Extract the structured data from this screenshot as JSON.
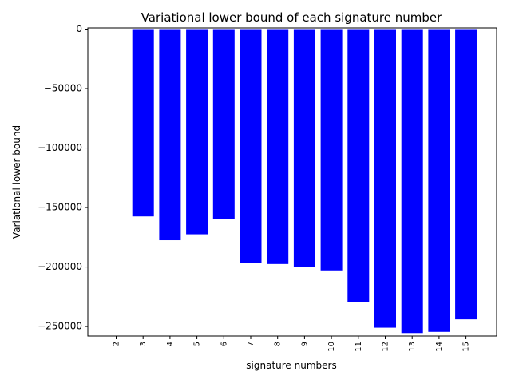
{
  "chart_data": {
    "type": "bar",
    "title": "Variational lower bound of each signature number",
    "xlabel": "signature numbers",
    "ylabel": "Variational lower bound",
    "categories": [
      "2",
      "3",
      "4",
      "5",
      "6",
      "7",
      "8",
      "9",
      "10",
      "11",
      "12",
      "13",
      "14",
      "15"
    ],
    "values": [
      0,
      -157500,
      -177500,
      -172500,
      -160000,
      -196500,
      -197500,
      -200000,
      -203500,
      -229500,
      -251000,
      -255500,
      -254500,
      -244000
    ],
    "ylim": [
      -258000,
      1000
    ],
    "yticks": [
      0,
      -50000,
      -100000,
      -150000,
      -200000,
      -250000
    ],
    "ytick_labels": [
      "0",
      "−50000",
      "−100000",
      "−150000",
      "−200000",
      "−250000"
    ],
    "bar_color": "#0000ff",
    "grid": false,
    "legend": "none"
  }
}
